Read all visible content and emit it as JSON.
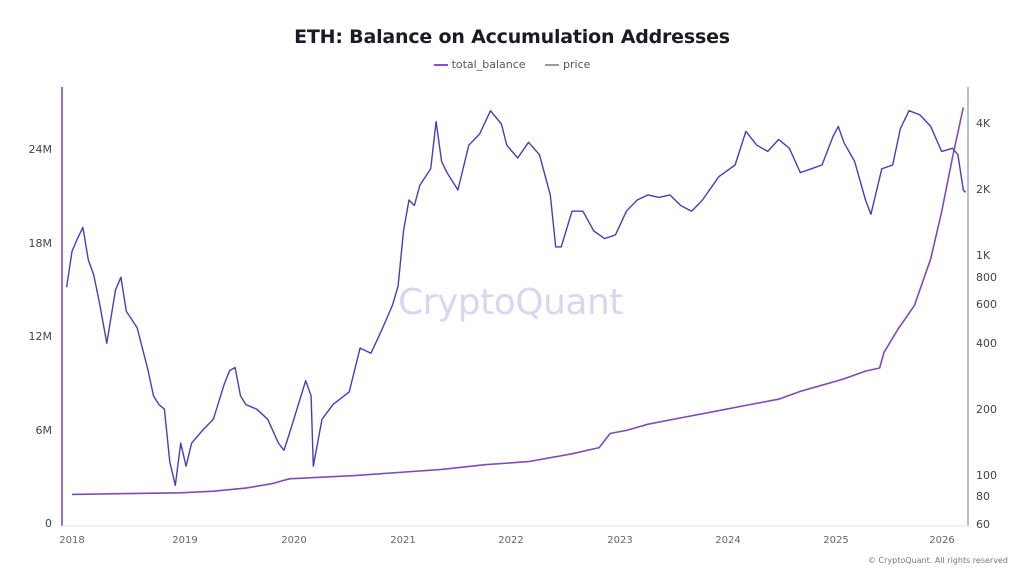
{
  "chart_data": {
    "type": "line",
    "title": "ETH: Balance on Accumulation Addresses",
    "legend": [
      {
        "name": "total_balance",
        "color": "#8a4fc8"
      },
      {
        "name": "price",
        "color": "#4a3cc0"
      }
    ],
    "legend_position": "top-center",
    "xlabel": "",
    "x_ticks": [
      "2018",
      "2019",
      "2020",
      "2021",
      "2022",
      "2023",
      "2024",
      "2025",
      "2026"
    ],
    "y_left": {
      "label": "",
      "ticks": [
        "0",
        "6M",
        "12M",
        "18M",
        "24M"
      ],
      "range": [
        0,
        27500000
      ],
      "scale": "linear",
      "axis_color": "#9a6fd0"
    },
    "y_right": {
      "label": "",
      "ticks": [
        "60",
        "80",
        "100",
        "200",
        "400",
        "600",
        "800",
        "1K",
        "2K",
        "4K"
      ],
      "range": [
        60,
        5000
      ],
      "scale": "log",
      "axis_color": "#9a9ab0"
    },
    "grid": false,
    "series": [
      {
        "name": "total_balance",
        "axis": "left",
        "points": [
          [
            2018.0,
            1.9
          ],
          [
            2018.5,
            1.95
          ],
          [
            2019.0,
            2.0
          ],
          [
            2019.3,
            2.1
          ],
          [
            2019.6,
            2.3
          ],
          [
            2019.85,
            2.6
          ],
          [
            2020.0,
            2.9
          ],
          [
            2020.3,
            3.0
          ],
          [
            2020.6,
            3.1
          ],
          [
            2021.0,
            3.3
          ],
          [
            2021.4,
            3.5
          ],
          [
            2021.8,
            3.8
          ],
          [
            2022.2,
            4.0
          ],
          [
            2022.6,
            4.5
          ],
          [
            2022.85,
            4.9
          ],
          [
            2022.95,
            5.8
          ],
          [
            2023.1,
            6.0
          ],
          [
            2023.3,
            6.4
          ],
          [
            2023.6,
            6.8
          ],
          [
            2023.9,
            7.2
          ],
          [
            2024.2,
            7.6
          ],
          [
            2024.5,
            8.0
          ],
          [
            2024.7,
            8.5
          ],
          [
            2024.9,
            8.9
          ],
          [
            2025.1,
            9.3
          ],
          [
            2025.3,
            9.8
          ],
          [
            2025.43,
            10.0
          ],
          [
            2025.47,
            11.0
          ],
          [
            2025.6,
            12.5
          ],
          [
            2025.75,
            14.0
          ],
          [
            2025.9,
            17.0
          ],
          [
            2026.0,
            20.0
          ],
          [
            2026.1,
            23.5
          ],
          [
            2026.2,
            26.7
          ]
        ]
      },
      {
        "name": "price",
        "axis": "right",
        "points": [
          [
            2017.95,
            720
          ],
          [
            2018.0,
            1050
          ],
          [
            2018.05,
            1200
          ],
          [
            2018.1,
            1350
          ],
          [
            2018.15,
            960
          ],
          [
            2018.2,
            820
          ],
          [
            2018.25,
            620
          ],
          [
            2018.32,
            400
          ],
          [
            2018.4,
            700
          ],
          [
            2018.45,
            800
          ],
          [
            2018.5,
            560
          ],
          [
            2018.6,
            470
          ],
          [
            2018.7,
            300
          ],
          [
            2018.75,
            230
          ],
          [
            2018.8,
            210
          ],
          [
            2018.85,
            200
          ],
          [
            2018.9,
            115
          ],
          [
            2018.95,
            90
          ],
          [
            2019.0,
            140
          ],
          [
            2019.05,
            110
          ],
          [
            2019.1,
            140
          ],
          [
            2019.2,
            160
          ],
          [
            2019.3,
            180
          ],
          [
            2019.4,
            260
          ],
          [
            2019.45,
            300
          ],
          [
            2019.5,
            310
          ],
          [
            2019.55,
            230
          ],
          [
            2019.6,
            210
          ],
          [
            2019.7,
            200
          ],
          [
            2019.8,
            180
          ],
          [
            2019.9,
            140
          ],
          [
            2019.95,
            130
          ],
          [
            2020.0,
            155
          ],
          [
            2020.15,
            270
          ],
          [
            2020.2,
            230
          ],
          [
            2020.22,
            110
          ],
          [
            2020.3,
            180
          ],
          [
            2020.4,
            210
          ],
          [
            2020.55,
            240
          ],
          [
            2020.65,
            380
          ],
          [
            2020.75,
            360
          ],
          [
            2020.85,
            460
          ],
          [
            2020.95,
            600
          ],
          [
            2021.0,
            730
          ],
          [
            2021.05,
            1300
          ],
          [
            2021.1,
            1800
          ],
          [
            2021.15,
            1700
          ],
          [
            2021.2,
            2100
          ],
          [
            2021.3,
            2500
          ],
          [
            2021.35,
            4100
          ],
          [
            2021.4,
            2700
          ],
          [
            2021.45,
            2400
          ],
          [
            2021.55,
            2000
          ],
          [
            2021.65,
            3200
          ],
          [
            2021.75,
            3600
          ],
          [
            2021.85,
            4600
          ],
          [
            2021.95,
            4000
          ],
          [
            2022.0,
            3200
          ],
          [
            2022.1,
            2800
          ],
          [
            2022.2,
            3300
          ],
          [
            2022.3,
            2900
          ],
          [
            2022.4,
            1900
          ],
          [
            2022.45,
            1100
          ],
          [
            2022.5,
            1100
          ],
          [
            2022.6,
            1600
          ],
          [
            2022.7,
            1600
          ],
          [
            2022.8,
            1300
          ],
          [
            2022.9,
            1200
          ],
          [
            2023.0,
            1250
          ],
          [
            2023.1,
            1600
          ],
          [
            2023.2,
            1800
          ],
          [
            2023.3,
            1900
          ],
          [
            2023.4,
            1850
          ],
          [
            2023.5,
            1900
          ],
          [
            2023.6,
            1700
          ],
          [
            2023.7,
            1600
          ],
          [
            2023.8,
            1800
          ],
          [
            2023.95,
            2300
          ],
          [
            2024.1,
            2600
          ],
          [
            2024.2,
            3700
          ],
          [
            2024.3,
            3200
          ],
          [
            2024.4,
            3000
          ],
          [
            2024.5,
            3400
          ],
          [
            2024.6,
            3100
          ],
          [
            2024.7,
            2400
          ],
          [
            2024.8,
            2500
          ],
          [
            2024.9,
            2600
          ],
          [
            2025.0,
            3500
          ],
          [
            2025.05,
            3900
          ],
          [
            2025.1,
            3300
          ],
          [
            2025.2,
            2700
          ],
          [
            2025.3,
            1800
          ],
          [
            2025.35,
            1550
          ],
          [
            2025.45,
            2500
          ],
          [
            2025.55,
            2600
          ],
          [
            2025.62,
            3800
          ],
          [
            2025.7,
            4600
          ],
          [
            2025.8,
            4400
          ],
          [
            2025.9,
            3900
          ],
          [
            2026.0,
            3000
          ],
          [
            2026.1,
            3100
          ],
          [
            2026.15,
            2900
          ],
          [
            2026.2,
            2000
          ],
          [
            2026.22,
            1950
          ]
        ]
      }
    ]
  },
  "watermark": "CryptoQuant",
  "copyright": "© CryptoQuant. All rights reserved"
}
